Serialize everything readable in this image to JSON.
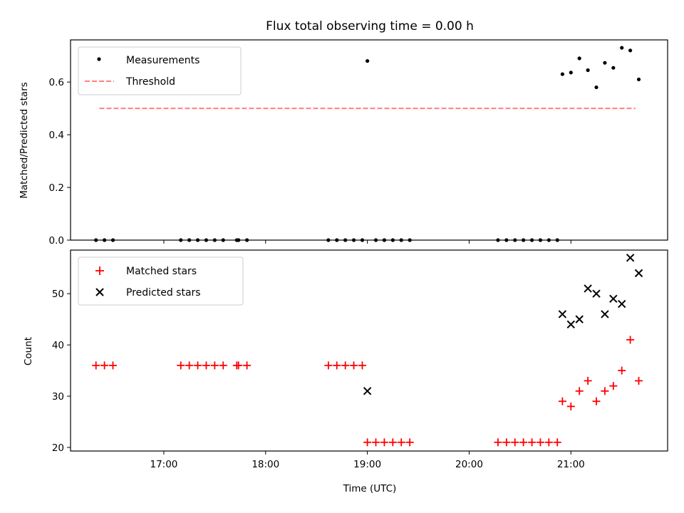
{
  "chart_data": [
    {
      "type": "scatter",
      "title": "Flux total observing time = 0.00 h",
      "xlabel": "",
      "ylabel": "Matched/Predicted stars",
      "xlim": [
        "16:05",
        "21:57"
      ],
      "ylim": [
        0,
        0.76
      ],
      "yticks": [
        0.0,
        0.2,
        0.4,
        0.6
      ],
      "ytick_labels": [
        "0.0",
        "0.2",
        "0.4",
        "0.6"
      ],
      "legend_position": "upper-left",
      "series": [
        {
          "name": "Measurements",
          "marker": "dot",
          "color": "#000000",
          "points": [
            [
              "16:20",
              0.0
            ],
            [
              "16:25",
              0.0
            ],
            [
              "16:30",
              0.0
            ],
            [
              "17:10",
              0.0
            ],
            [
              "17:15",
              0.0
            ],
            [
              "17:20",
              0.0
            ],
            [
              "17:25",
              0.0
            ],
            [
              "17:30",
              0.0
            ],
            [
              "17:35",
              0.0
            ],
            [
              "17:43",
              0.0
            ],
            [
              "17:44",
              0.0
            ],
            [
              "17:49",
              0.0
            ],
            [
              "18:37",
              0.0
            ],
            [
              "18:42",
              0.0
            ],
            [
              "18:47",
              0.0
            ],
            [
              "18:52",
              0.0
            ],
            [
              "18:57",
              0.0
            ],
            [
              "19:00",
              0.68
            ],
            [
              "19:05",
              0.0
            ],
            [
              "19:10",
              0.0
            ],
            [
              "19:15",
              0.0
            ],
            [
              "19:20",
              0.0
            ],
            [
              "19:25",
              0.0
            ],
            [
              "20:17",
              0.0
            ],
            [
              "20:22",
              0.0
            ],
            [
              "20:27",
              0.0
            ],
            [
              "20:32",
              0.0
            ],
            [
              "20:37",
              0.0
            ],
            [
              "20:42",
              0.0
            ],
            [
              "20:47",
              0.0
            ],
            [
              "20:52",
              0.0
            ],
            [
              "20:55",
              0.63
            ],
            [
              "21:00",
              0.636
            ],
            [
              "21:05",
              0.69
            ],
            [
              "21:10",
              0.645
            ],
            [
              "21:15",
              0.58
            ],
            [
              "21:20",
              0.673
            ],
            [
              "21:25",
              0.654
            ],
            [
              "21:30",
              0.73
            ],
            [
              "21:35",
              0.72
            ],
            [
              "21:40",
              0.61
            ]
          ]
        },
        {
          "name": "Threshold",
          "marker": "dashed-line",
          "color": "#ff7f7f",
          "points": [
            [
              "16:22",
              0.5
            ],
            [
              "21:38",
              0.5
            ]
          ]
        }
      ]
    },
    {
      "type": "scatter",
      "title": "",
      "xlabel": "Time (UTC)",
      "ylabel": "Count",
      "xlim": [
        "16:05",
        "21:57"
      ],
      "ylim": [
        19.3,
        58.5
      ],
      "yticks": [
        20,
        30,
        40,
        50
      ],
      "ytick_labels": [
        "20",
        "30",
        "40",
        "50"
      ],
      "xticks": [
        "17:00",
        "18:00",
        "19:00",
        "20:00",
        "21:00"
      ],
      "xtick_labels": [
        "17:00",
        "18:00",
        "19:00",
        "20:00",
        "21:00"
      ],
      "legend_position": "upper-left",
      "series": [
        {
          "name": "Matched stars",
          "marker": "plus",
          "color": "#ff0000",
          "points": [
            [
              "16:20",
              36
            ],
            [
              "16:25",
              36
            ],
            [
              "16:30",
              36
            ],
            [
              "17:10",
              36
            ],
            [
              "17:15",
              36
            ],
            [
              "17:20",
              36
            ],
            [
              "17:25",
              36
            ],
            [
              "17:30",
              36
            ],
            [
              "17:35",
              36
            ],
            [
              "17:43",
              36
            ],
            [
              "17:44",
              36
            ],
            [
              "17:49",
              36
            ],
            [
              "18:37",
              36
            ],
            [
              "18:42",
              36
            ],
            [
              "18:47",
              36
            ],
            [
              "18:52",
              36
            ],
            [
              "18:57",
              36
            ],
            [
              "19:00",
              21
            ],
            [
              "19:05",
              21
            ],
            [
              "19:10",
              21
            ],
            [
              "19:15",
              21
            ],
            [
              "19:20",
              21
            ],
            [
              "19:25",
              21
            ],
            [
              "20:17",
              21
            ],
            [
              "20:22",
              21
            ],
            [
              "20:27",
              21
            ],
            [
              "20:32",
              21
            ],
            [
              "20:37",
              21
            ],
            [
              "20:42",
              21
            ],
            [
              "20:47",
              21
            ],
            [
              "20:52",
              21
            ],
            [
              "20:55",
              29
            ],
            [
              "21:00",
              28
            ],
            [
              "21:05",
              31
            ],
            [
              "21:10",
              33
            ],
            [
              "21:15",
              29
            ],
            [
              "21:20",
              31
            ],
            [
              "21:25",
              32
            ],
            [
              "21:30",
              35
            ],
            [
              "21:35",
              41
            ],
            [
              "21:40",
              33
            ]
          ]
        },
        {
          "name": "Predicted stars",
          "marker": "x",
          "color": "#000000",
          "points": [
            [
              "19:00",
              31
            ],
            [
              "20:55",
              46
            ],
            [
              "21:00",
              44
            ],
            [
              "21:05",
              45
            ],
            [
              "21:10",
              51
            ],
            [
              "21:15",
              50
            ],
            [
              "21:20",
              46
            ],
            [
              "21:25",
              49
            ],
            [
              "21:30",
              48
            ],
            [
              "21:35",
              57
            ],
            [
              "21:40",
              54
            ]
          ]
        }
      ]
    }
  ]
}
